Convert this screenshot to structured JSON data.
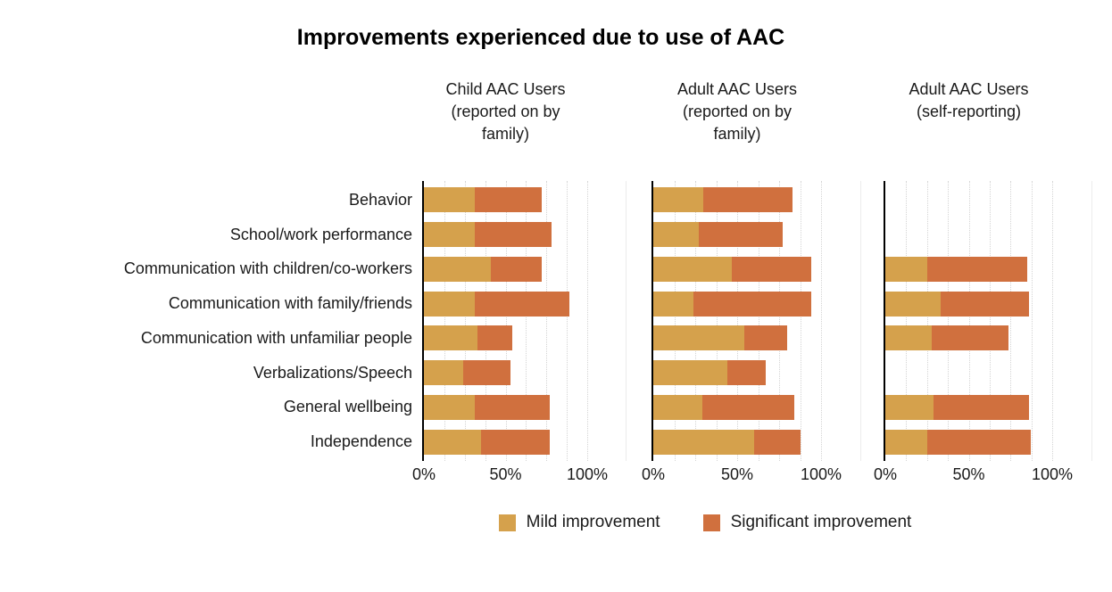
{
  "title": "Improvements experienced due to use of AAC",
  "colors": {
    "mild": "#D5A14C",
    "significant": "#D0703E",
    "axis": "#000000",
    "gridline": "#d4d4d4",
    "background": "#ffffff"
  },
  "chart_data": {
    "type": "bar",
    "variant": "horizontal-stacked",
    "title": "Improvements experienced due to use of AAC",
    "categories": [
      "Behavior",
      "School/work performance",
      "Communication with children/co-workers",
      "Communication with family/friends",
      "Communication with unfamiliar people",
      "Verbalizations/Speech",
      "General wellbeing",
      "Independence"
    ],
    "x_axis": {
      "range": [
        0,
        100
      ],
      "tick_values": [
        0,
        50,
        100
      ],
      "tick_labels": [
        "0%",
        "50%",
        "100%"
      ],
      "gridline_step_pct": 12.5,
      "grid": true
    },
    "legend": {
      "position": "bottom",
      "entries": [
        {
          "name": "Mild improvement",
          "color": "#D5A14C"
        },
        {
          "name": "Significant improvement",
          "color": "#D0703E"
        }
      ]
    },
    "panels": [
      {
        "title": "Child AAC Users\n(reported on by\nfamily)",
        "series": [
          {
            "name": "Mild improvement",
            "values": [
              31,
              31,
              41,
              31,
              33,
              24,
              31,
              35
            ]
          },
          {
            "name": "Significant improvement",
            "values": [
              41,
              47,
              31,
              58,
              21,
              29,
              46,
              42
            ]
          }
        ]
      },
      {
        "title": "Adult AAC Users\n(reported on by\nfamily)",
        "series": [
          {
            "name": "Mild improvement",
            "values": [
              30,
              27,
              47,
              24,
              54,
              44,
              29,
              60
            ]
          },
          {
            "name": "Significant improvement",
            "values": [
              53,
              50,
              47,
              70,
              26,
              23,
              55,
              28
            ]
          }
        ]
      },
      {
        "title": "Adult AAC Users\n(self-reporting)",
        "series": [
          {
            "name": "Mild improvement",
            "values": [
              null,
              null,
              25,
              33,
              28,
              null,
              29,
              25
            ]
          },
          {
            "name": "Significant improvement",
            "values": [
              null,
              null,
              60,
              53,
              46,
              null,
              57,
              62
            ]
          }
        ]
      }
    ]
  }
}
